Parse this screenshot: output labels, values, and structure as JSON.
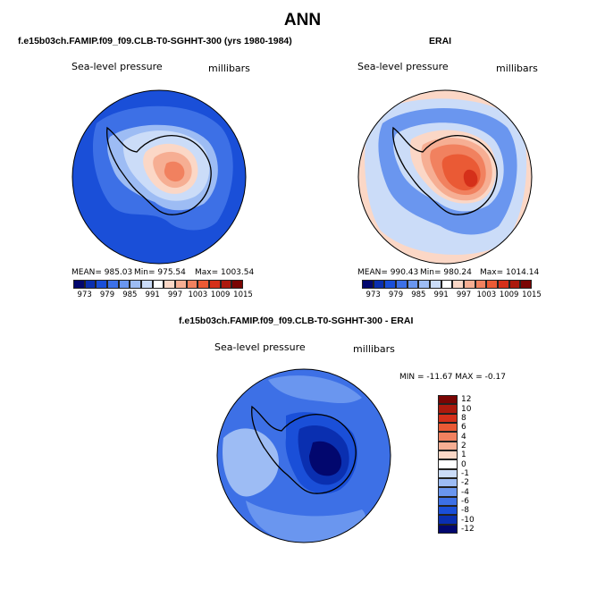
{
  "title": "ANN",
  "colors": {
    "levels_abs": [
      "#02076e",
      "#0a2fb0",
      "#1a4fd8",
      "#3d70e6",
      "#6a96ef",
      "#9dbcf4",
      "#cbdcf8",
      "#ffffff",
      "#fbd7c6",
      "#f6ae93",
      "#f1815f",
      "#ea5a35",
      "#d5301a",
      "#ac1a0d",
      "#7a0503"
    ],
    "levels_diff": [
      "#02076e",
      "#0a2fb0",
      "#1a4fd8",
      "#3d70e6",
      "#6a96ef",
      "#9dbcf4",
      "#cbdcf8",
      "#ffffff",
      "#fbd7c6",
      "#f6ae93",
      "#f1815f",
      "#ea5a35",
      "#d5301a",
      "#ac1a0d",
      "#7a0503"
    ]
  },
  "chart_data": [
    {
      "type": "heatmap",
      "title": "f.e15b03ch.FAMIP.f09_f09.CLB-T0-SGHHT-300 (yrs 1980-1984)",
      "field": "Sea-level pressure",
      "units": "millibars",
      "stats": {
        "mean_label": "MEAN= 985.03",
        "min_label": "Min= 975.54",
        "max_label": "Max= 1003.54",
        "mean": 985.03,
        "min": 975.54,
        "max": 1003.54
      },
      "levels": [
        "973",
        "979",
        "985",
        "991",
        "997",
        "1003",
        "1009",
        "1015"
      ],
      "contour_values": {
        "outer": 985.03,
        "inner_plateau": 991,
        "polar_high": 1003.54
      }
    },
    {
      "type": "heatmap",
      "title": "ERAI",
      "field": "Sea-level pressure",
      "units": "millibars",
      "stats": {
        "mean_label": "MEAN= 990.43",
        "min_label": "Min= 980.24",
        "max_label": "Max= 1014.14",
        "mean": 990.43,
        "min": 980.24,
        "max": 1014.14
      },
      "levels": [
        "973",
        "979",
        "985",
        "991",
        "997",
        "1003",
        "1009",
        "1015"
      ],
      "contour_values": {
        "outer": 990.43,
        "inner_plateau": 997,
        "polar_high": 1014.14
      }
    },
    {
      "type": "heatmap",
      "title": "f.e15b03ch.FAMIP.f09_f09.CLB-T0-SGHHT-300 - ERAI",
      "field": "Sea-level pressure",
      "units": "millibars",
      "stats": {
        "label": "MIN = -11.67  MAX =  -0.17",
        "min": -11.67,
        "max": -0.17
      },
      "levels": [
        "12",
        "10",
        "8",
        "6",
        "4",
        "2",
        "1",
        "0",
        "-1",
        "-2",
        "-4",
        "-6",
        "-8",
        "-10",
        "-12"
      ]
    }
  ]
}
